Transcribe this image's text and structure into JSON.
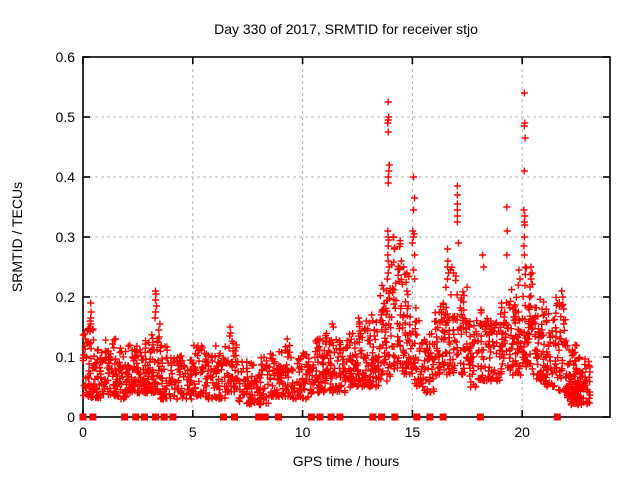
{
  "chart_data": {
    "type": "scatter",
    "title": "Day 330 of 2017, SRMTID for receiver stjo",
    "xlabel": "GPS time / hours",
    "ylabel": "SRMTID / TECUs",
    "xlim": [
      0,
      24
    ],
    "ylim": [
      0,
      0.6
    ],
    "xticks": [
      0,
      5,
      10,
      15,
      20
    ],
    "xtick_labels": [
      "0",
      "5",
      "10",
      "15",
      "20"
    ],
    "yticks": [
      0,
      0.1,
      0.2,
      0.3,
      0.4,
      0.5,
      0.6
    ],
    "ytick_labels": [
      "0",
      "0.1",
      "0.2",
      "0.3",
      "0.4",
      "0.5",
      "0.6"
    ],
    "grid": true,
    "legend": "none",
    "marker": "+",
    "marker_color": "#ff0000",
    "grid_color": "#b3b3b3",
    "border_color": "#000000",
    "series_name": "SRMTID",
    "seed": 1234,
    "cloud_bins": [
      [
        0.0,
        0.5,
        55,
        0.03,
        0.15
      ],
      [
        0.5,
        1.0,
        45,
        0.03,
        0.12
      ],
      [
        1.0,
        1.5,
        50,
        0.035,
        0.13
      ],
      [
        1.5,
        2.0,
        45,
        0.03,
        0.12
      ],
      [
        2.0,
        2.5,
        50,
        0.04,
        0.12
      ],
      [
        2.5,
        3.0,
        50,
        0.04,
        0.13
      ],
      [
        3.0,
        3.5,
        55,
        0.04,
        0.14
      ],
      [
        3.5,
        4.0,
        45,
        0.03,
        0.12
      ],
      [
        4.0,
        4.5,
        40,
        0.03,
        0.11
      ],
      [
        4.5,
        5.0,
        35,
        0.03,
        0.1
      ],
      [
        5.0,
        5.5,
        40,
        0.035,
        0.12
      ],
      [
        5.5,
        6.0,
        35,
        0.03,
        0.11
      ],
      [
        6.0,
        6.5,
        40,
        0.03,
        0.12
      ],
      [
        6.5,
        7.0,
        45,
        0.04,
        0.13
      ],
      [
        7.0,
        7.5,
        35,
        0.02,
        0.1
      ],
      [
        7.5,
        8.0,
        35,
        0.02,
        0.09
      ],
      [
        8.0,
        8.5,
        40,
        0.02,
        0.1
      ],
      [
        8.5,
        9.0,
        40,
        0.03,
        0.11
      ],
      [
        9.0,
        9.5,
        40,
        0.03,
        0.12
      ],
      [
        9.5,
        10.0,
        35,
        0.03,
        0.1
      ],
      [
        10.0,
        10.5,
        40,
        0.03,
        0.11
      ],
      [
        10.5,
        11.0,
        45,
        0.04,
        0.13
      ],
      [
        11.0,
        11.5,
        45,
        0.04,
        0.14
      ],
      [
        11.5,
        12.0,
        40,
        0.04,
        0.13
      ],
      [
        12.0,
        12.5,
        45,
        0.05,
        0.14
      ],
      [
        12.5,
        13.0,
        50,
        0.05,
        0.16
      ],
      [
        13.0,
        13.5,
        50,
        0.05,
        0.16
      ],
      [
        13.5,
        14.0,
        55,
        0.06,
        0.22
      ],
      [
        14.0,
        14.5,
        55,
        0.08,
        0.3
      ],
      [
        14.5,
        15.0,
        50,
        0.07,
        0.25
      ],
      [
        15.0,
        15.5,
        40,
        0.05,
        0.2
      ],
      [
        15.5,
        16.0,
        40,
        0.04,
        0.15
      ],
      [
        16.0,
        16.5,
        45,
        0.06,
        0.2
      ],
      [
        16.5,
        17.0,
        45,
        0.07,
        0.25
      ],
      [
        17.0,
        17.5,
        45,
        0.07,
        0.22
      ],
      [
        17.5,
        18.0,
        40,
        0.05,
        0.17
      ],
      [
        18.0,
        18.5,
        45,
        0.06,
        0.18
      ],
      [
        18.5,
        19.0,
        40,
        0.06,
        0.16
      ],
      [
        19.0,
        19.5,
        45,
        0.07,
        0.2
      ],
      [
        19.5,
        20.0,
        50,
        0.07,
        0.22
      ],
      [
        20.0,
        20.5,
        55,
        0.08,
        0.25
      ],
      [
        20.5,
        21.0,
        50,
        0.06,
        0.2
      ],
      [
        21.0,
        21.5,
        45,
        0.05,
        0.18
      ],
      [
        21.5,
        22.0,
        50,
        0.04,
        0.2
      ],
      [
        22.0,
        22.5,
        55,
        0.03,
        0.12
      ],
      [
        22.2,
        22.8,
        40,
        0.02,
        0.06
      ],
      [
        22.5,
        23.1,
        50,
        0.02,
        0.1
      ]
    ],
    "spike_points": [
      [
        0.33,
        0.16
      ],
      [
        0.35,
        0.155
      ],
      [
        0.35,
        0.165
      ],
      [
        0.37,
        0.175
      ],
      [
        0.35,
        0.19
      ],
      [
        3.28,
        0.165
      ],
      [
        3.3,
        0.175
      ],
      [
        3.3,
        0.195
      ],
      [
        3.32,
        0.205
      ],
      [
        3.3,
        0.21
      ],
      [
        3.35,
        0.185
      ],
      [
        3.45,
        0.145
      ],
      [
        3.5,
        0.155
      ],
      [
        6.68,
        0.135
      ],
      [
        6.7,
        0.15
      ],
      [
        6.72,
        0.14
      ],
      [
        9.3,
        0.13
      ],
      [
        11.35,
        0.155
      ],
      [
        11.4,
        0.15
      ],
      [
        12.55,
        0.165
      ],
      [
        12.6,
        0.155
      ],
      [
        13.15,
        0.17
      ],
      [
        13.2,
        0.16
      ],
      [
        13.86,
        0.23
      ],
      [
        13.88,
        0.27
      ],
      [
        13.88,
        0.31
      ],
      [
        13.88,
        0.49
      ],
      [
        13.9,
        0.24
      ],
      [
        13.9,
        0.26
      ],
      [
        13.9,
        0.285
      ],
      [
        13.9,
        0.3
      ],
      [
        13.9,
        0.39
      ],
      [
        13.9,
        0.4
      ],
      [
        13.9,
        0.475
      ],
      [
        13.9,
        0.495
      ],
      [
        13.9,
        0.525
      ],
      [
        13.92,
        0.295
      ],
      [
        13.92,
        0.5
      ],
      [
        13.93,
        0.41
      ],
      [
        13.94,
        0.25
      ],
      [
        13.95,
        0.42
      ],
      [
        14.15,
        0.3
      ],
      [
        14.2,
        0.28
      ],
      [
        14.5,
        0.26
      ],
      [
        14.6,
        0.25
      ],
      [
        14.75,
        0.24
      ],
      [
        15.0,
        0.29
      ],
      [
        15.02,
        0.31
      ],
      [
        15.05,
        0.245
      ],
      [
        15.05,
        0.3
      ],
      [
        15.05,
        0.345
      ],
      [
        15.05,
        0.4
      ],
      [
        15.08,
        0.305
      ],
      [
        15.1,
        0.23
      ],
      [
        15.1,
        0.27
      ],
      [
        15.1,
        0.365
      ],
      [
        16.6,
        0.23
      ],
      [
        16.6,
        0.25
      ],
      [
        16.6,
        0.28
      ],
      [
        16.62,
        0.26
      ],
      [
        16.65,
        0.24
      ],
      [
        17.05,
        0.325
      ],
      [
        17.05,
        0.335
      ],
      [
        17.05,
        0.345
      ],
      [
        17.05,
        0.355
      ],
      [
        17.05,
        0.37
      ],
      [
        17.05,
        0.385
      ],
      [
        17.1,
        0.29
      ],
      [
        18.2,
        0.27
      ],
      [
        18.25,
        0.25
      ],
      [
        19.3,
        0.27
      ],
      [
        19.3,
        0.35
      ],
      [
        19.32,
        0.31
      ],
      [
        19.85,
        0.245
      ],
      [
        19.9,
        0.23
      ],
      [
        20.08,
        0.285
      ],
      [
        20.08,
        0.345
      ],
      [
        20.1,
        0.27
      ],
      [
        20.1,
        0.3
      ],
      [
        20.1,
        0.325
      ],
      [
        20.1,
        0.41
      ],
      [
        20.1,
        0.485
      ],
      [
        20.1,
        0.54
      ],
      [
        20.12,
        0.32
      ],
      [
        20.12,
        0.335
      ],
      [
        20.12,
        0.49
      ],
      [
        20.14,
        0.465
      ],
      [
        20.15,
        0.25
      ],
      [
        20.4,
        0.23
      ],
      [
        20.4,
        0.25
      ],
      [
        20.45,
        0.24
      ],
      [
        21.8,
        0.21
      ],
      [
        21.85,
        0.2
      ]
    ],
    "zero_cluster_hours": [
      0.0,
      0.45,
      1.9,
      2.4,
      2.8,
      3.3,
      3.7,
      4.1,
      6.4,
      6.9,
      8.0,
      8.15,
      8.3,
      8.9,
      10.4,
      10.8,
      11.3,
      11.7,
      13.2,
      13.6,
      14.2,
      15.2,
      15.8,
      16.4,
      18.1,
      21.6
    ],
    "zero_plus_hours": [
      0.02
    ]
  }
}
